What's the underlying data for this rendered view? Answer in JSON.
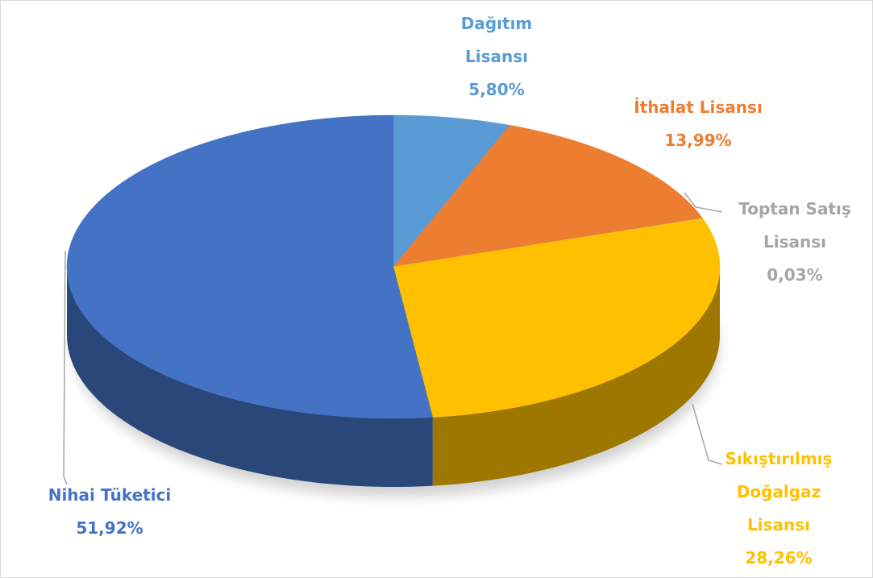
{
  "chart_data": {
    "type": "pie",
    "categories": [
      "Dağıtım Lisansı",
      "İthalat Lisansı",
      "Toptan Satış Lisansı",
      "Sıkıştırılmış Doğalgaz Lisansı",
      "Nihai Tüketici"
    ],
    "values": [
      5.8,
      13.99,
      0.03,
      28.26,
      51.92
    ],
    "value_labels": [
      "5,80%",
      "13,99%",
      "0,03%",
      "28,26%",
      "51,92%"
    ],
    "colors": [
      "#5b9bd5",
      "#ed7d31",
      "#a5a5a5",
      "#ffc000",
      "#4472c4"
    ]
  }
}
